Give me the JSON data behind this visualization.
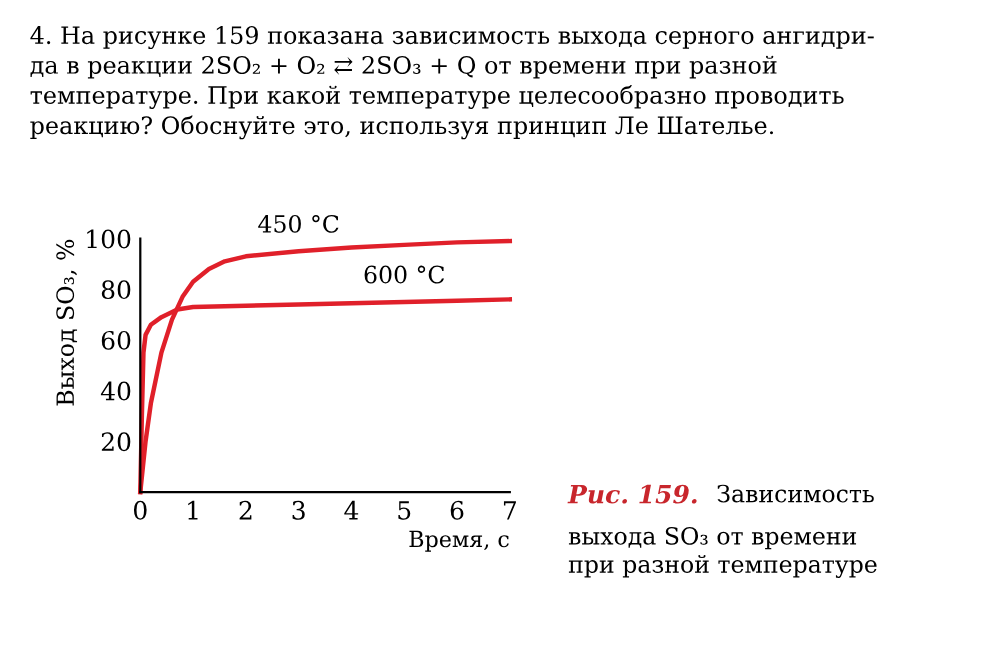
{
  "chart_data": {
    "type": "line",
    "title": "4. На рисунке 159 показана зависимость выхода серного ангидри-\nда в реакции 2SO₂ + O₂ ⇄ 2SO₃ + Q от времени при разной\nтемпературе. При какой температуре целесообразно проводить\nреакцию? Обоснуйте это, используя принцип Ле Шателье.",
    "xlabel": "Время, с",
    "ylabel": "Выход SO₃, %",
    "annotations": [
      "Рис. 159.",
      "Зависимость\nвыхода SO₃ от времени\nпри разной температуре"
    ],
    "series": [
      {
        "name": "450 °C",
        "color": "#e0202a",
        "x": [
          0,
          0.1,
          0.2,
          0.4,
          0.6,
          0.8,
          1,
          1.3,
          1.6,
          2,
          3,
          4,
          5,
          6,
          7
        ],
        "values": [
          0,
          20,
          35,
          55,
          68,
          77,
          83,
          88,
          91,
          93,
          95,
          96.5,
          97.5,
          98.5,
          99
        ]
      },
      {
        "name": "600 °C",
        "color": "#e0202a",
        "x": [
          0,
          0.03,
          0.06,
          0.1,
          0.2,
          0.4,
          0.7,
          1,
          2,
          3,
          4,
          5,
          6,
          7
        ],
        "values": [
          0,
          30,
          55,
          62,
          66,
          69,
          72,
          73,
          73.5,
          74,
          74.5,
          75,
          75.5,
          76
        ]
      }
    ],
    "xlim": [
      0,
      7
    ],
    "xticks": [
      0,
      1,
      2,
      3,
      4,
      5,
      6,
      7
    ],
    "ylim": [
      0,
      100
    ],
    "yticks": [
      20,
      40,
      60,
      80,
      100
    ],
    "grid": false,
    "legend": false,
    "marker": "none",
    "line_style": "solid"
  }
}
